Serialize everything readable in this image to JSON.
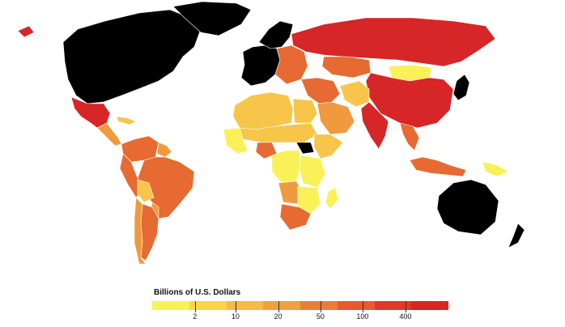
{
  "legend": {
    "title": "Billions of U.S. Dollars",
    "colors": [
      "#f9f157",
      "#f8d64a",
      "#f6bb45",
      "#f19f3f",
      "#ec7d35",
      "#e55b2e",
      "#dd3a2a",
      "#d62628"
    ],
    "ticks": [
      {
        "label": "2",
        "frac": 0.144
      },
      {
        "label": "10",
        "frac": 0.281
      },
      {
        "label": "20",
        "frac": 0.425
      },
      {
        "label": "50",
        "frac": 0.568
      },
      {
        "label": "100",
        "frac": 0.71
      },
      {
        "label": "400",
        "frac": 0.855
      }
    ]
  },
  "map": {
    "colors": {
      "no_data": "#000000",
      "lowest": "#f9f157",
      "low": "#f6c54a",
      "mid": "#ef9a3f",
      "high": "#e66a31",
      "highest": "#d62628"
    },
    "regions": [
      {
        "name": "north-america",
        "tier": "no_data"
      },
      {
        "name": "greenland",
        "tier": "no_data"
      },
      {
        "name": "mexico",
        "tier": "highest"
      },
      {
        "name": "central-america",
        "tier": "mid"
      },
      {
        "name": "caribbean",
        "tier": "low"
      },
      {
        "name": "colombia-venezuela",
        "tier": "high"
      },
      {
        "name": "guianas",
        "tier": "mid"
      },
      {
        "name": "brazil",
        "tier": "high"
      },
      {
        "name": "peru",
        "tier": "high"
      },
      {
        "name": "bolivia",
        "tier": "low"
      },
      {
        "name": "paraguay",
        "tier": "mid"
      },
      {
        "name": "argentina",
        "tier": "high"
      },
      {
        "name": "chile",
        "tier": "mid"
      },
      {
        "name": "iceland",
        "tier": "highest"
      },
      {
        "name": "western-europe",
        "tier": "no_data"
      },
      {
        "name": "scandinavia",
        "tier": "no_data"
      },
      {
        "name": "eastern-europe",
        "tier": "high"
      },
      {
        "name": "russia",
        "tier": "highest"
      },
      {
        "name": "kazakhstan",
        "tier": "high"
      },
      {
        "name": "mongolia",
        "tier": "lowest"
      },
      {
        "name": "china",
        "tier": "highest"
      },
      {
        "name": "japan",
        "tier": "no_data"
      },
      {
        "name": "middle-east",
        "tier": "high"
      },
      {
        "name": "arabia",
        "tier": "mid"
      },
      {
        "name": "central-asia",
        "tier": "low"
      },
      {
        "name": "india",
        "tier": "highest"
      },
      {
        "name": "southeast-asia",
        "tier": "high"
      },
      {
        "name": "indonesia",
        "tier": "high"
      },
      {
        "name": "png",
        "tier": "lowest"
      },
      {
        "name": "australia",
        "tier": "no_data"
      },
      {
        "name": "new-zealand",
        "tier": "no_data"
      },
      {
        "name": "north-africa",
        "tier": "low"
      },
      {
        "name": "egypt",
        "tier": "low"
      },
      {
        "name": "sahel",
        "tier": "low"
      },
      {
        "name": "west-africa",
        "tier": "lowest"
      },
      {
        "name": "nigeria",
        "tier": "high"
      },
      {
        "name": "central-africa",
        "tier": "lowest"
      },
      {
        "name": "south-sudan",
        "tier": "no_data"
      },
      {
        "name": "horn-of-africa",
        "tier": "low"
      },
      {
        "name": "east-africa",
        "tier": "lowest"
      },
      {
        "name": "angola",
        "tier": "mid"
      },
      {
        "name": "southern-africa",
        "tier": "lowest"
      },
      {
        "name": "south-africa",
        "tier": "high"
      },
      {
        "name": "madagascar",
        "tier": "lowest"
      }
    ]
  }
}
